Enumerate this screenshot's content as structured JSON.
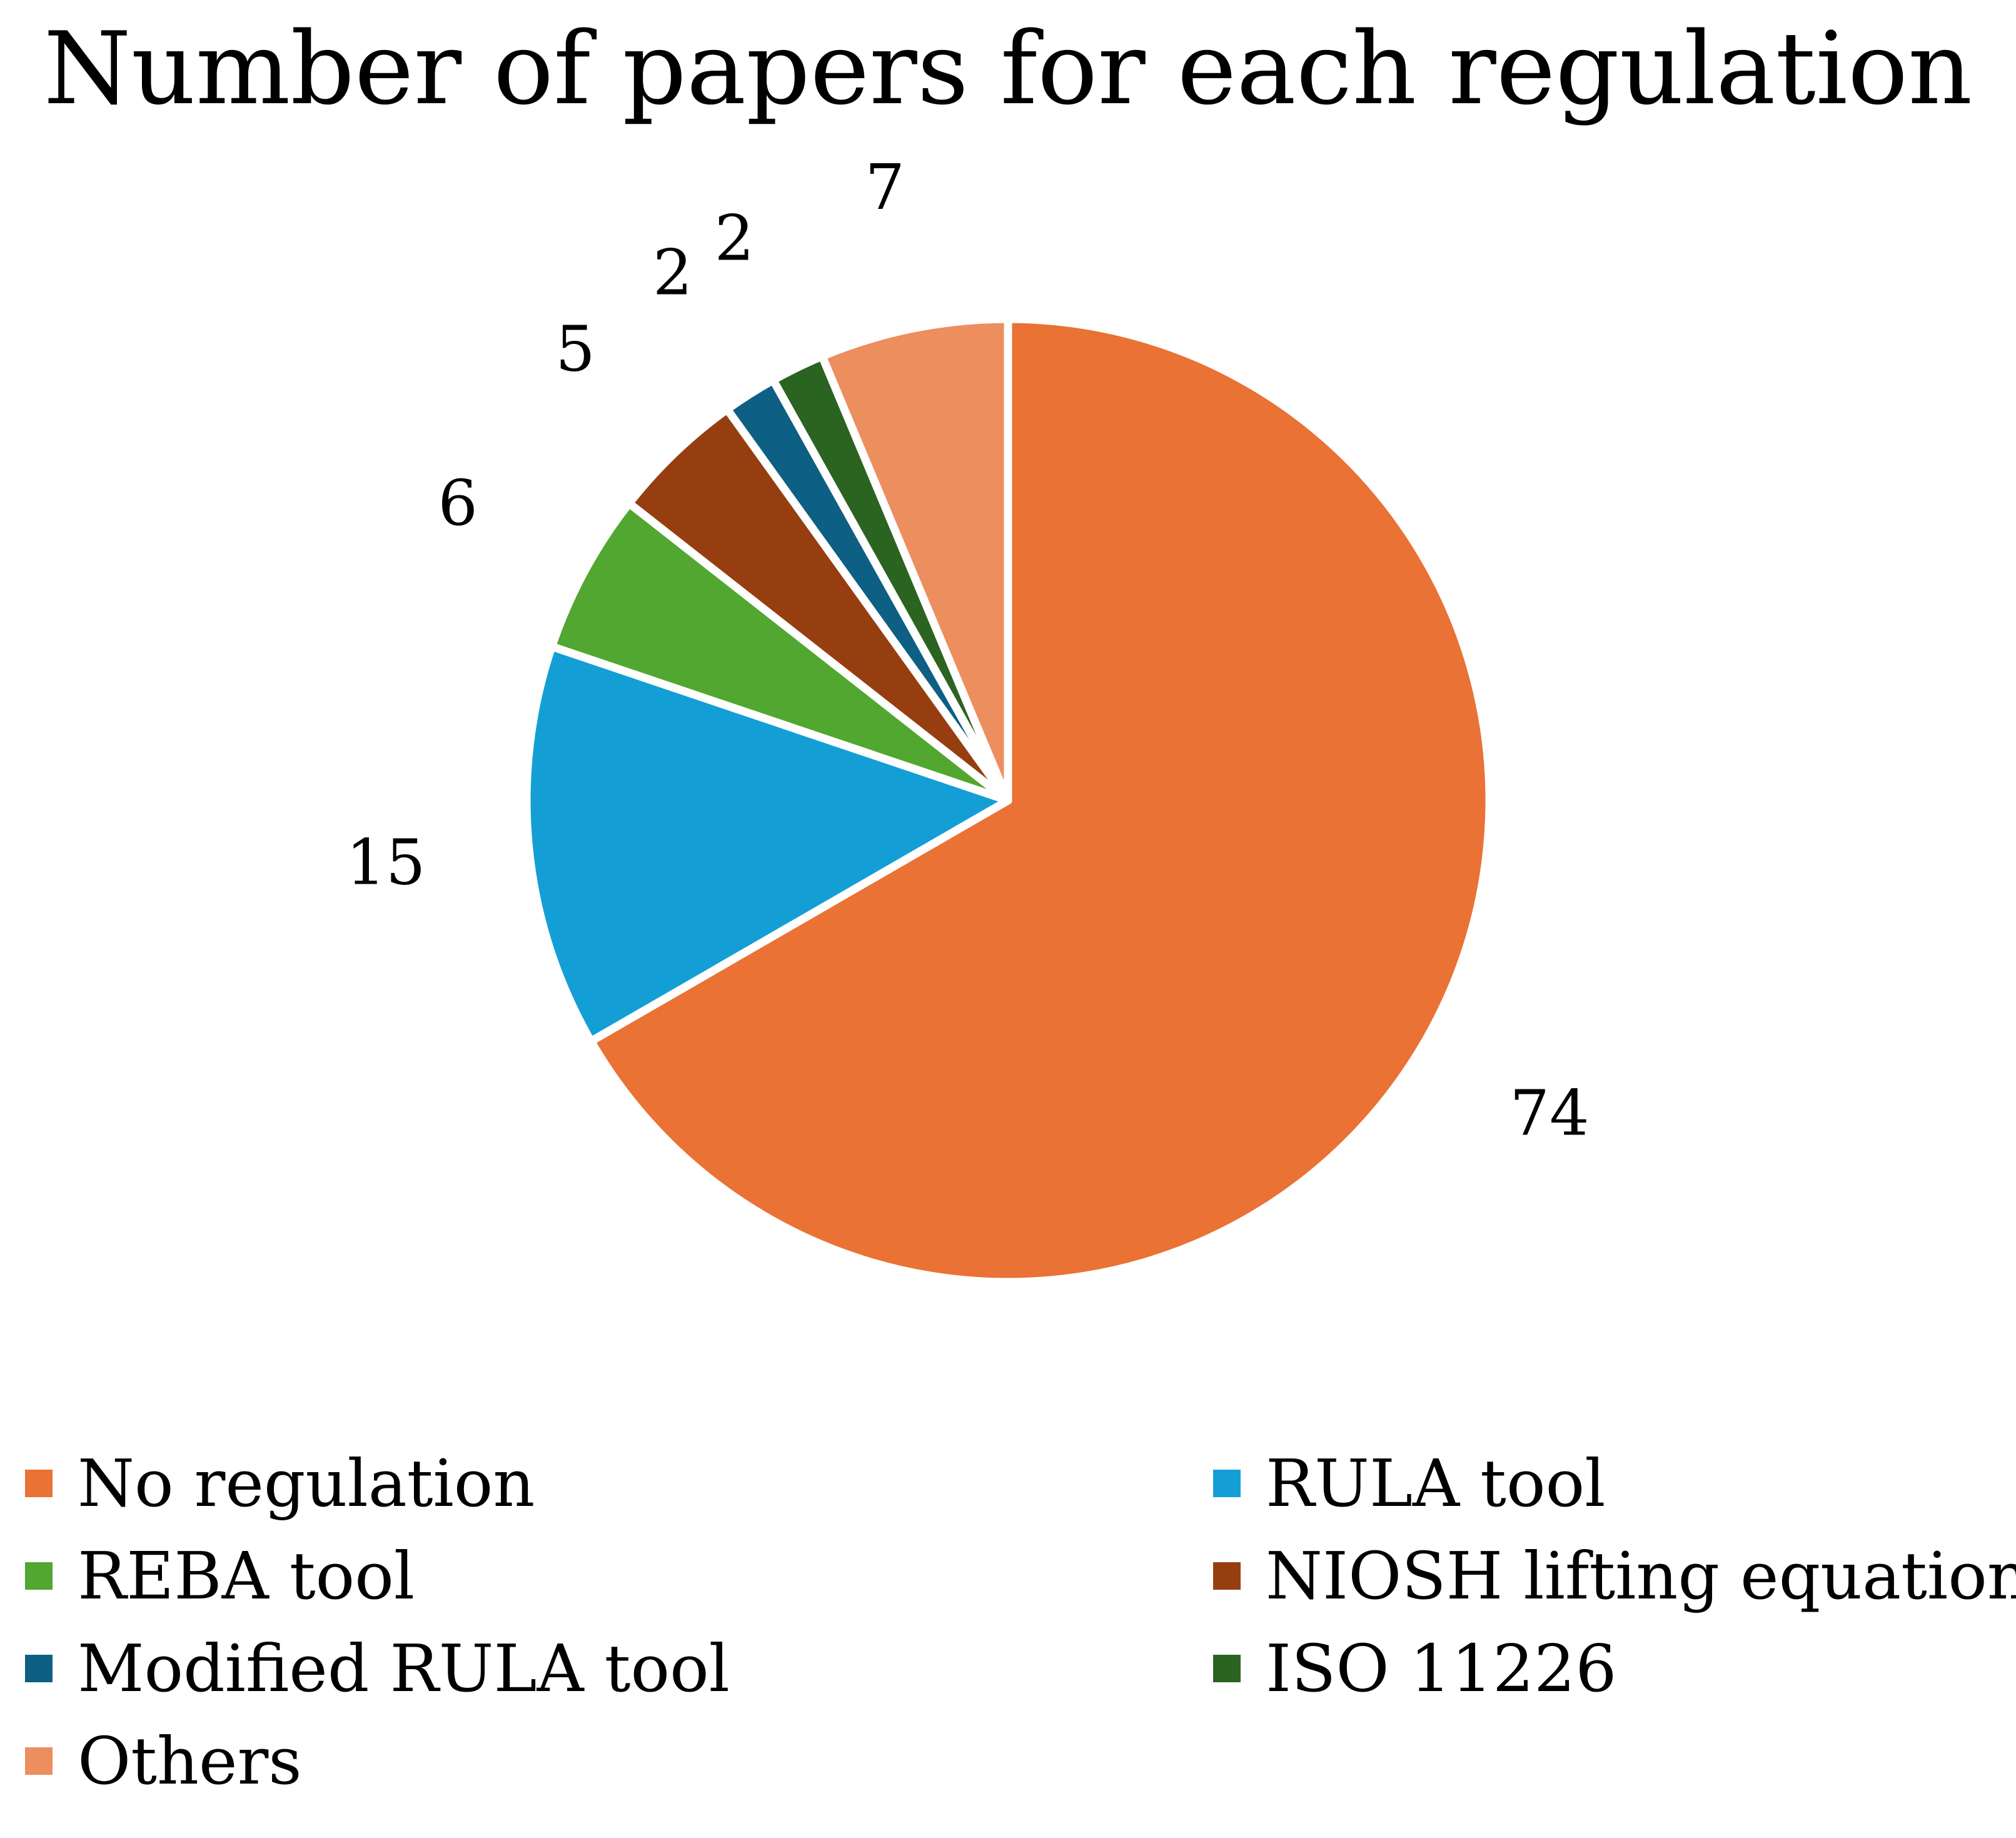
{
  "chart_data": {
    "type": "pie",
    "title": "Number of papers for each regulation",
    "slices": [
      {
        "label": "No regulation",
        "value": 74,
        "color": "#E97234"
      },
      {
        "label": "RULA tool",
        "value": 15,
        "color": "#139FD6"
      },
      {
        "label": "REBA tool",
        "value": 6,
        "color": "#51A72F"
      },
      {
        "label": "NIOSH lifting equation",
        "value": 5,
        "color": "#973E10"
      },
      {
        "label": "Modified RULA tool",
        "value": 2,
        "color": "#0E5F84"
      },
      {
        "label": "ISO 11226",
        "value": 2,
        "color": "#2B6321"
      },
      {
        "label": "Others",
        "value": 7,
        "color": "#ED8E5F"
      }
    ],
    "legend_position": "bottom",
    "data_labels": true
  }
}
